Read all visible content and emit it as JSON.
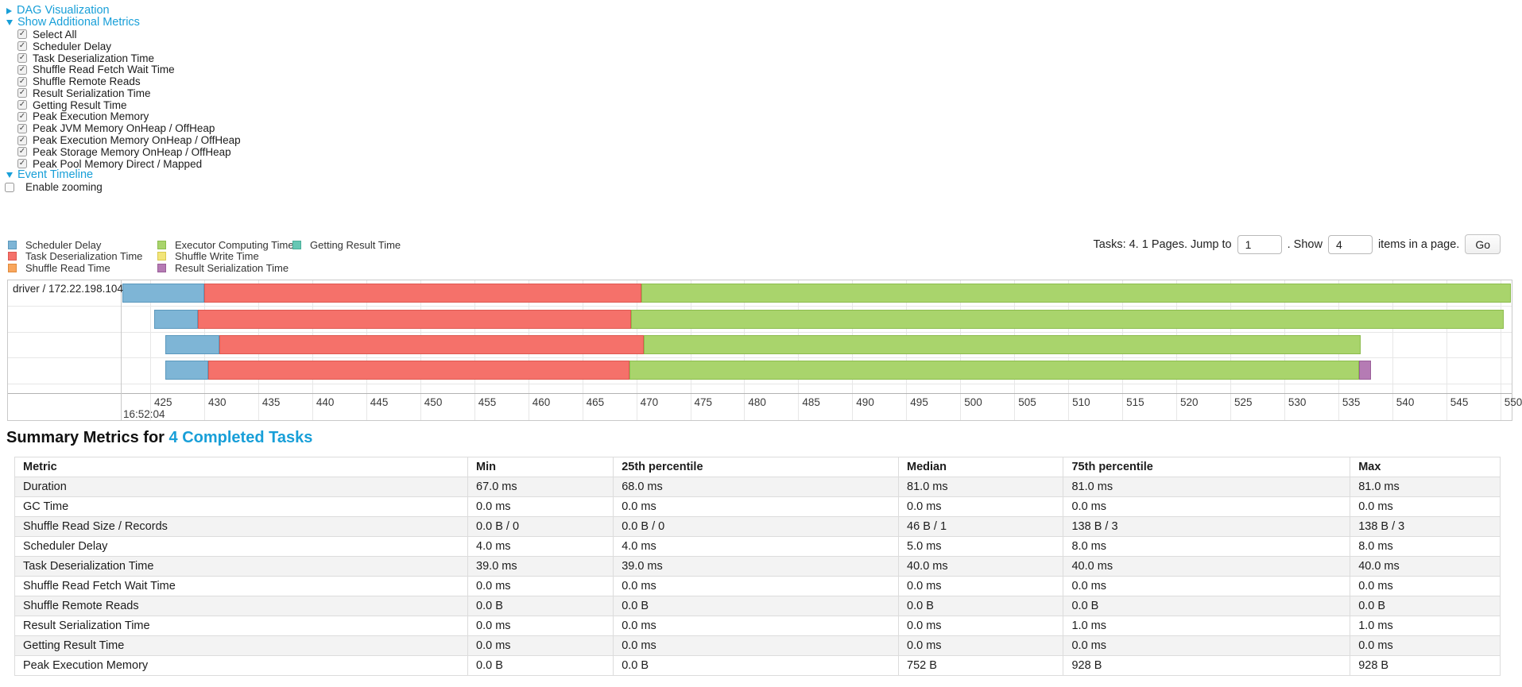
{
  "colors": {
    "link_blue": "#189fd8",
    "segments": {
      "scheduler_delay": {
        "label": "Scheduler Delay",
        "fill": "#7EB5D6",
        "border": "#5B98BD"
      },
      "task_deserialization": {
        "label": "Task Deserialization Time",
        "fill": "#F5716A",
        "border": "#DE5850"
      },
      "shuffle_read": {
        "label": "Shuffle Read Time",
        "fill": "#F9A65C",
        "border": "#E08A3C"
      },
      "executor_computing": {
        "label": "Executor Computing Time",
        "fill": "#A9D46C",
        "border": "#8CBC4D"
      },
      "shuffle_write": {
        "label": "Shuffle Write Time",
        "fill": "#F2E579",
        "border": "#D9C94F"
      },
      "result_serialization": {
        "label": "Result Serialization Time",
        "fill": "#B57BB4",
        "border": "#9A5E99"
      },
      "getting_result": {
        "label": "Getting Result Time",
        "fill": "#66C7B4",
        "border": "#49AE98"
      }
    }
  },
  "controls": {
    "dag_label": "DAG Visualization",
    "metrics_label": "Show Additional Metrics",
    "metrics_items": [
      "Select All",
      "Scheduler Delay",
      "Task Deserialization Time",
      "Shuffle Read Fetch Wait Time",
      "Shuffle Remote Reads",
      "Result Serialization Time",
      "Getting Result Time",
      "Peak Execution Memory",
      "Peak JVM Memory OnHeap / OffHeap",
      "Peak Execution Memory OnHeap / OffHeap",
      "Peak Storage Memory OnHeap / OffHeap",
      "Peak Pool Memory Direct / Mapped"
    ],
    "timeline_label": "Event Timeline",
    "zoom_label": "Enable zooming"
  },
  "legend_columns": [
    [
      "scheduler_delay",
      "task_deserialization",
      "shuffle_read"
    ],
    [
      "executor_computing",
      "shuffle_write",
      "result_serialization"
    ],
    [
      "getting_result"
    ]
  ],
  "pagination": {
    "text_before": "Tasks: 4. 1 Pages. Jump to",
    "jump_value": "1",
    "text_mid": ". Show",
    "show_value": "4",
    "text_after": "items in a page.",
    "go_label": "Go"
  },
  "chart_data": {
    "type": "timeline-gantt",
    "row_label": "driver / 172.22.198.104",
    "x_axis": {
      "t_min": 422.35,
      "t_max": 551.05,
      "tick_start": 425,
      "tick_end": 550,
      "tick_step": 5,
      "time_label": "16:52:04"
    },
    "tasks": [
      {
        "segments": [
          {
            "name": "scheduler_delay",
            "start": 422.4,
            "end": 430.0
          },
          {
            "name": "task_deserialization",
            "start": 430.0,
            "end": 470.5
          },
          {
            "name": "executor_computing",
            "start": 470.5,
            "end": 551.0
          }
        ]
      },
      {
        "segments": [
          {
            "name": "scheduler_delay",
            "start": 425.4,
            "end": 429.4
          },
          {
            "name": "task_deserialization",
            "start": 429.4,
            "end": 469.5
          },
          {
            "name": "executor_computing",
            "start": 469.5,
            "end": 550.3
          }
        ]
      },
      {
        "segments": [
          {
            "name": "scheduler_delay",
            "start": 426.4,
            "end": 431.4
          },
          {
            "name": "task_deserialization",
            "start": 431.4,
            "end": 470.7
          },
          {
            "name": "executor_computing",
            "start": 470.7,
            "end": 537.1
          }
        ]
      },
      {
        "segments": [
          {
            "name": "scheduler_delay",
            "start": 426.4,
            "end": 430.4
          },
          {
            "name": "task_deserialization",
            "start": 430.4,
            "end": 469.4
          },
          {
            "name": "executor_computing",
            "start": 469.4,
            "end": 536.9
          },
          {
            "name": "result_serialization",
            "start": 536.9,
            "end": 538.0
          }
        ]
      }
    ]
  },
  "summary": {
    "title_prefix": "Summary Metrics for",
    "title_link": "4 Completed Tasks",
    "table": {
      "headers": [
        "Metric",
        "Min",
        "25th percentile",
        "Median",
        "75th percentile",
        "Max"
      ],
      "rows": [
        [
          "Duration",
          "67.0 ms",
          "68.0 ms",
          "81.0 ms",
          "81.0 ms",
          "81.0 ms"
        ],
        [
          "GC Time",
          "0.0 ms",
          "0.0 ms",
          "0.0 ms",
          "0.0 ms",
          "0.0 ms"
        ],
        [
          "Shuffle Read Size / Records",
          "0.0 B / 0",
          "0.0 B / 0",
          "46 B / 1",
          "138 B / 3",
          "138 B / 3"
        ],
        [
          "Scheduler Delay",
          "4.0 ms",
          "4.0 ms",
          "5.0 ms",
          "8.0 ms",
          "8.0 ms"
        ],
        [
          "Task Deserialization Time",
          "39.0 ms",
          "39.0 ms",
          "40.0 ms",
          "40.0 ms",
          "40.0 ms"
        ],
        [
          "Shuffle Read Fetch Wait Time",
          "0.0 ms",
          "0.0 ms",
          "0.0 ms",
          "0.0 ms",
          "0.0 ms"
        ],
        [
          "Shuffle Remote Reads",
          "0.0 B",
          "0.0 B",
          "0.0 B",
          "0.0 B",
          "0.0 B"
        ],
        [
          "Result Serialization Time",
          "0.0 ms",
          "0.0 ms",
          "0.0 ms",
          "1.0 ms",
          "1.0 ms"
        ],
        [
          "Getting Result Time",
          "0.0 ms",
          "0.0 ms",
          "0.0 ms",
          "0.0 ms",
          "0.0 ms"
        ],
        [
          "Peak Execution Memory",
          "0.0 B",
          "0.0 B",
          "752 B",
          "928 B",
          "928 B"
        ]
      ]
    }
  }
}
